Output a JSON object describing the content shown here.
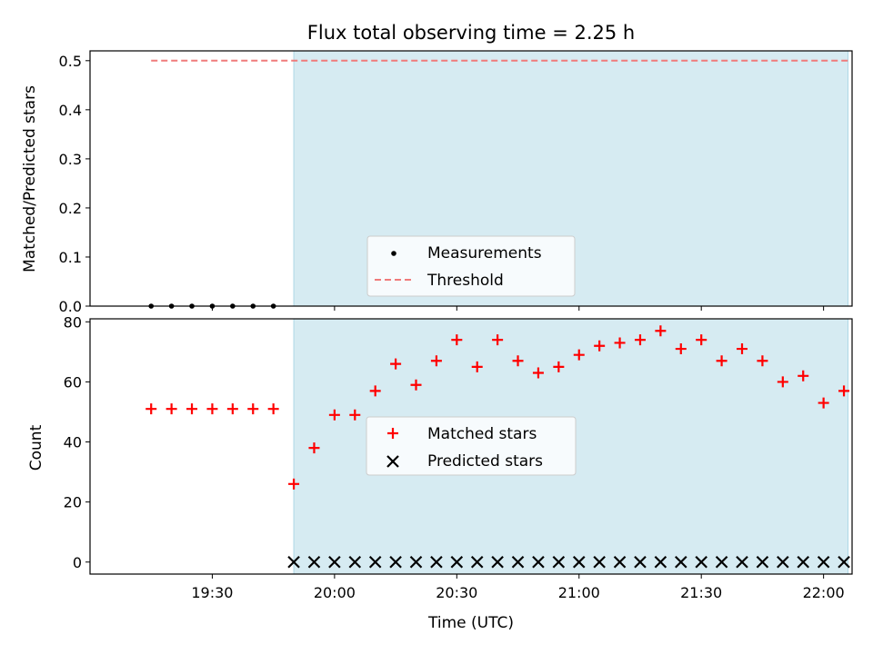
{
  "title": "Flux total observing time = 2.25 h",
  "colors": {
    "shade": "#add8e6",
    "matched": "#ff0000",
    "predicted": "#000000",
    "threshold": "#f07b7b",
    "measurement": "#000000"
  },
  "chart_data": [
    {
      "type": "scatter",
      "panel": "top",
      "ylabel": "Matched/Predicted stars",
      "ylim": [
        0,
        0.52
      ],
      "yticks": [
        "0.0",
        "0.1",
        "0.2",
        "0.3",
        "0.4",
        "0.5"
      ],
      "ytick_values": [
        0,
        0.1,
        0.2,
        0.3,
        0.4,
        0.5
      ],
      "shaded_span_minutes": [
        1190,
        1326
      ],
      "series": [
        {
          "name": "Measurements",
          "marker": "dot",
          "x": [
            1155,
            1160,
            1165,
            1170,
            1175,
            1180,
            1185
          ],
          "y": [
            0,
            0,
            0,
            0,
            0,
            0,
            0
          ]
        },
        {
          "name": "Threshold",
          "marker": "dashed-line",
          "x": [
            1155,
            1326
          ],
          "y": [
            0.5,
            0.5
          ]
        }
      ],
      "legend_position": "lower-center"
    },
    {
      "type": "scatter",
      "panel": "bottom",
      "xlabel": "Time (UTC)",
      "ylabel": "Count",
      "ylim": [
        -4,
        81
      ],
      "yticks": [
        "0",
        "20",
        "40",
        "60",
        "80"
      ],
      "ytick_values": [
        0,
        20,
        40,
        60,
        80
      ],
      "xlim_minutes": [
        1140,
        1327
      ],
      "xticks": [
        "19:30",
        "20:00",
        "20:30",
        "21:00",
        "21:30",
        "22:00"
      ],
      "xtick_minutes": [
        1170,
        1200,
        1230,
        1260,
        1290,
        1320
      ],
      "shaded_span_minutes": [
        1190,
        1326
      ],
      "series": [
        {
          "name": "Matched stars",
          "marker": "plus",
          "x": [
            1155,
            1160,
            1165,
            1170,
            1175,
            1180,
            1185,
            1190,
            1195,
            1200,
            1205,
            1210,
            1215,
            1220,
            1225,
            1230,
            1235,
            1240,
            1245,
            1250,
            1255,
            1260,
            1265,
            1270,
            1275,
            1280,
            1285,
            1290,
            1295,
            1300,
            1305,
            1310,
            1315,
            1320,
            1325
          ],
          "y": [
            51,
            51,
            51,
            51,
            51,
            51,
            51,
            26,
            38,
            49,
            49,
            57,
            66,
            59,
            67,
            74,
            65,
            74,
            67,
            63,
            65,
            69,
            72,
            73,
            74,
            77,
            71,
            74,
            67,
            71,
            67,
            60,
            62,
            53,
            57
          ]
        },
        {
          "name": "Predicted stars",
          "marker": "x",
          "x": [
            1190,
            1195,
            1200,
            1205,
            1210,
            1215,
            1220,
            1225,
            1230,
            1235,
            1240,
            1245,
            1250,
            1255,
            1260,
            1265,
            1270,
            1275,
            1280,
            1285,
            1290,
            1295,
            1300,
            1305,
            1310,
            1315,
            1320,
            1325
          ],
          "y": [
            0,
            0,
            0,
            0,
            0,
            0,
            0,
            0,
            0,
            0,
            0,
            0,
            0,
            0,
            0,
            0,
            0,
            0,
            0,
            0,
            0,
            0,
            0,
            0,
            0,
            0,
            0,
            0
          ]
        }
      ],
      "legend_position": "center"
    }
  ]
}
